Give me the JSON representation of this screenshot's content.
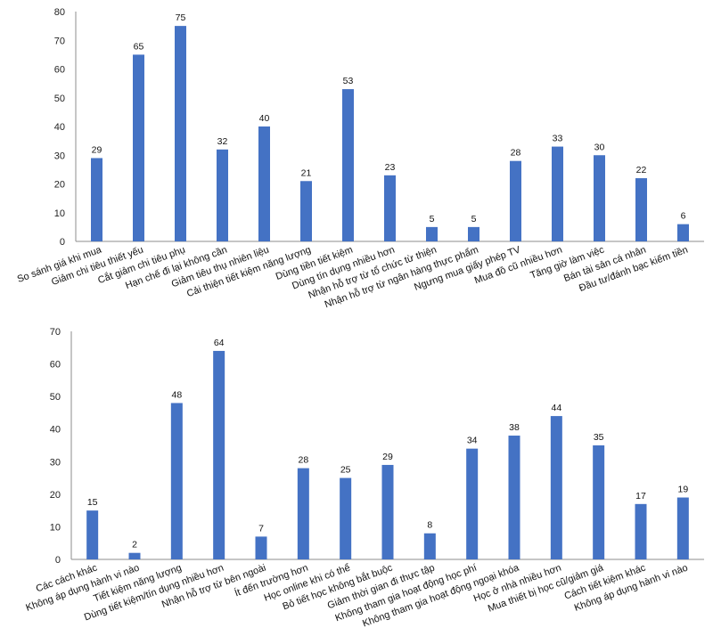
{
  "chart_data": [
    {
      "type": "bar",
      "title": "",
      "xlabel": "",
      "ylabel": "",
      "ylim": [
        0,
        80
      ],
      "yticks": [
        0,
        10,
        20,
        30,
        40,
        50,
        60,
        70,
        80
      ],
      "grid": false,
      "bar_color": "#4472C4",
      "categories": [
        "So sánh giá khi mua",
        "Giảm chi tiêu thiết yếu",
        "Cắt giảm chi tiêu phụ",
        "Hạn chế đi lại không cần",
        "Giảm tiêu thụ nhiên liệu",
        "Cải thiện tiết kiệm năng lượng",
        "Dùng tiền tiết kiệm",
        "Dùng tín dụng nhiều hơn",
        "Nhận hỗ trợ từ tổ chức từ thiện",
        "Nhận hỗ trợ từ ngân hàng thực phẩm",
        "Ngưng mua giấy phép TV",
        "Mua đồ cũ nhiều hơn",
        "Tăng giờ làm việc",
        "Bán tài sản cá nhân",
        "Đầu tư/đánh bạc kiếm tiền"
      ],
      "values": [
        29,
        65,
        75,
        32,
        40,
        21,
        53,
        23,
        5,
        5,
        28,
        33,
        30,
        22,
        6
      ]
    },
    {
      "type": "bar",
      "title": "",
      "xlabel": "",
      "ylabel": "",
      "ylim": [
        0,
        70
      ],
      "yticks": [
        0,
        10,
        20,
        30,
        40,
        50,
        60,
        70
      ],
      "grid": false,
      "bar_color": "#4472C4",
      "categories": [
        "Các cách khác",
        "Không áp dụng hành vi nào",
        "Tiết kiệm năng lượng",
        "Dùng tiết kiệm/tín dụng nhiều hơn",
        "Nhận hỗ trợ từ bên ngoài",
        "Ít đến trường hơn",
        "Học online khi có thể",
        "Bỏ tiết học không bắt buộc",
        "Giảm thời gian đi thực tập",
        "Không tham gia hoạt động học phí",
        "Không tham gia hoạt động ngoại khóa",
        "Học ở nhà nhiều hơn",
        "Mua thiết bị học cũ/giảm giá",
        "Cách tiết kiệm khác",
        "Không áp dụng hành vi nào"
      ],
      "values": [
        15,
        2,
        48,
        64,
        7,
        28,
        25,
        29,
        8,
        34,
        38,
        44,
        35,
        17,
        19
      ]
    }
  ]
}
